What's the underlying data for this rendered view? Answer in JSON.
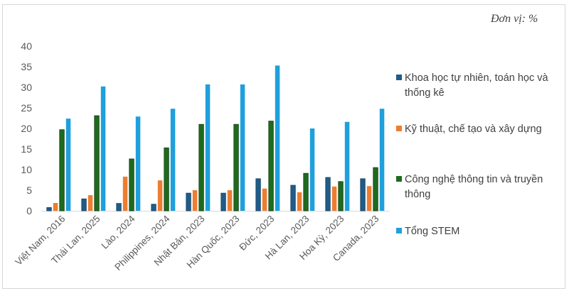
{
  "unit_label": "Đơn vị: %",
  "chart_data": {
    "type": "bar",
    "title": "",
    "xlabel": "",
    "ylabel": "",
    "ylim": [
      0,
      40
    ],
    "yticks": [
      0,
      5,
      10,
      15,
      20,
      25,
      30,
      35,
      40
    ],
    "grid": false,
    "legend_position": "right",
    "categories": [
      "Việt Nam, 2016",
      "Thái Lan, 2025",
      "Lào, 2024",
      "Philippines, 2024",
      "Nhật Bản, 2023",
      "Hàn Quốc, 2023",
      "Đức, 2023",
      "Hà Lan, 2023",
      "Hoa Kỳ, 2023",
      "Canada, 2023"
    ],
    "series": [
      {
        "name": "Khoa học tự nhiên, toán học và thống kê",
        "color": "#1f5c8a",
        "values": [
          0.8,
          2.9,
          1.8,
          1.6,
          4.3,
          4.3,
          7.8,
          6.2,
          8.1,
          7.8
        ]
      },
      {
        "name": "Kỹ thuật, chế tạo và xây dựng",
        "color": "#ed7d31",
        "values": [
          1.9,
          3.8,
          8.3,
          7.4,
          5.0,
          5.0,
          5.4,
          4.5,
          5.9,
          6.0
        ]
      },
      {
        "name": "Công nghệ thông tin và truyền thông",
        "color": "#1e6b1e",
        "values": [
          19.7,
          23.1,
          12.6,
          15.3,
          21.0,
          21.0,
          21.8,
          9.1,
          7.1,
          10.5
        ]
      },
      {
        "name": "Tổng STEM",
        "color": "#1fa0dc",
        "values": [
          22.4,
          30.2,
          22.9,
          24.8,
          30.7,
          30.7,
          35.3,
          20.0,
          21.6,
          24.8
        ]
      }
    ]
  }
}
